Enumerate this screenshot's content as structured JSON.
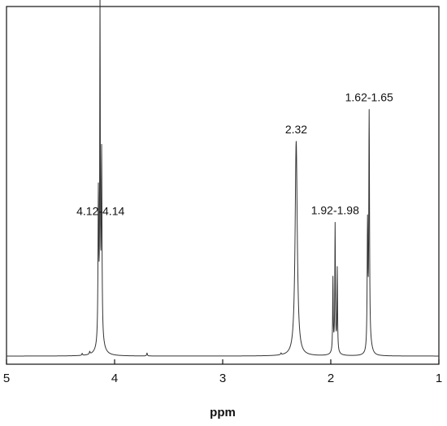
{
  "chart_data": {
    "type": "line",
    "title": "",
    "xlabel": "ppm",
    "ylabel": "",
    "xlim": [
      5,
      1
    ],
    "x_reversed": true,
    "ylim": [
      0,
      1
    ],
    "grid": false,
    "y_axis_ticks": false,
    "xticks": [
      5,
      4,
      3,
      2,
      1
    ],
    "xtick_labels": [
      "5",
      "4",
      "3",
      "2",
      "1"
    ],
    "series": [
      {
        "color": "#333333",
        "peaks": [
          {
            "ppm": 4.15,
            "intensity": 0.45,
            "width": 0.004
          },
          {
            "ppm": 4.135,
            "intensity": 1.0,
            "width": 0.003
          },
          {
            "ppm": 4.12,
            "intensity": 0.56,
            "width": 0.004
          },
          {
            "ppm": 4.13,
            "intensity": 0.05,
            "width": 0.03
          },
          {
            "ppm": 2.32,
            "intensity": 0.66,
            "width": 0.012
          },
          {
            "ppm": 1.98,
            "intensity": 0.22,
            "width": 0.003
          },
          {
            "ppm": 1.96,
            "intensity": 0.37,
            "width": 0.003
          },
          {
            "ppm": 1.94,
            "intensity": 0.25,
            "width": 0.003
          },
          {
            "ppm": 1.96,
            "intensity": 0.03,
            "width": 0.02
          },
          {
            "ppm": 1.66,
            "intensity": 0.38,
            "width": 0.004
          },
          {
            "ppm": 1.645,
            "intensity": 0.72,
            "width": 0.004
          },
          {
            "ppm": 1.63,
            "intensity": 0.02,
            "width": 0.02
          },
          {
            "ppm": 4.3,
            "intensity": 0.006,
            "width": 0.004
          },
          {
            "ppm": 4.23,
            "intensity": 0.008,
            "width": 0.004
          },
          {
            "ppm": 3.7,
            "intensity": 0.009,
            "width": 0.004
          },
          {
            "ppm": 2.46,
            "intensity": 0.005,
            "width": 0.004
          }
        ]
      }
    ],
    "annotations": [
      {
        "text": "4.12-4.14",
        "ppm": 4.13
      },
      {
        "text": "2.32",
        "ppm": 2.32
      },
      {
        "text": "1.92-1.98",
        "ppm": 1.96
      },
      {
        "text": "1.62-1.65",
        "ppm": 1.645
      }
    ]
  }
}
